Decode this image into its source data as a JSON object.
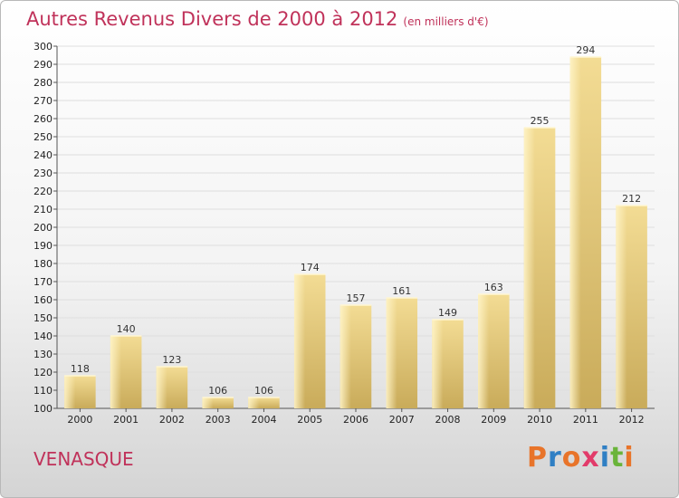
{
  "header": {
    "title": "Autres Revenus Divers de 2000 à 2012",
    "unit": "(en milliers d'€)"
  },
  "footer": {
    "city": "VENASQUE",
    "logo": "Proxiti",
    "logo_colors": [
      "#e8742a",
      "#2f7fc4",
      "#e8742a",
      "#e23b6a",
      "#2f7fc4",
      "#6ab43a",
      "#e8742a"
    ]
  },
  "chart_data": {
    "type": "bar",
    "categories": [
      "2000",
      "2001",
      "2002",
      "2003",
      "2004",
      "2005",
      "2006",
      "2007",
      "2008",
      "2009",
      "2010",
      "2011",
      "2012"
    ],
    "values": [
      118,
      140,
      123,
      106,
      106,
      174,
      157,
      161,
      149,
      163,
      255,
      294,
      212
    ],
    "title": "Autres Revenus Divers de 2000 à 2012",
    "ylim": [
      100,
      300
    ],
    "ytick_step": 10,
    "grid": true,
    "bar_color": "#e8cf80"
  }
}
